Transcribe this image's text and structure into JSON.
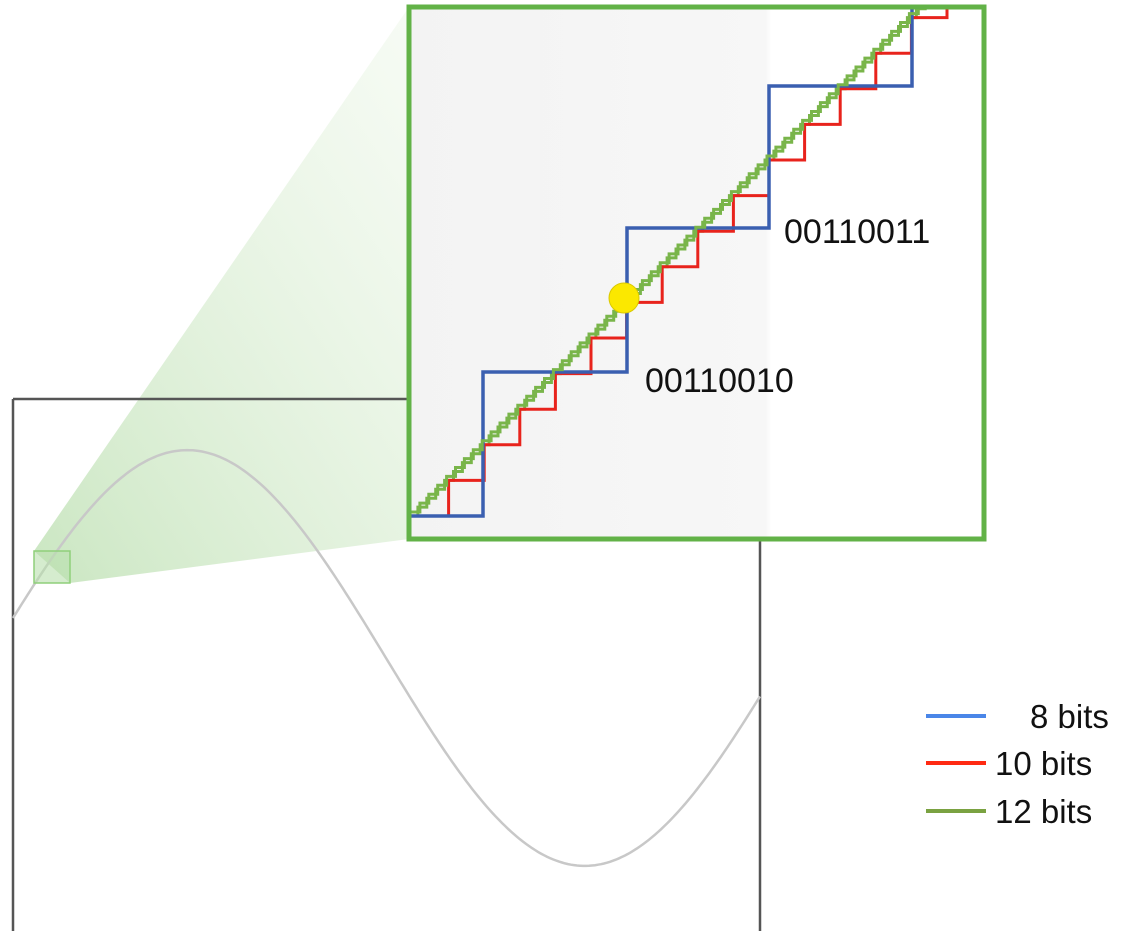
{
  "zoom_labels": {
    "lower_code": "00110010",
    "upper_code": "00110011"
  },
  "legend": [
    {
      "label": "8 bits",
      "color": "#4a86e8"
    },
    {
      "label": "10 bits",
      "color": "#ff2a12"
    },
    {
      "label": "12 bits",
      "color": "#7aa241"
    }
  ],
  "colors": {
    "frame_green": "#62b247",
    "wave_grey": "#c8c8c8",
    "axis_grey": "#555555",
    "step_8bit": "#3a5fb0",
    "step_10bit": "#e8231c",
    "step_12bit": "#79b54a",
    "sample_point": "#fbe800"
  }
}
